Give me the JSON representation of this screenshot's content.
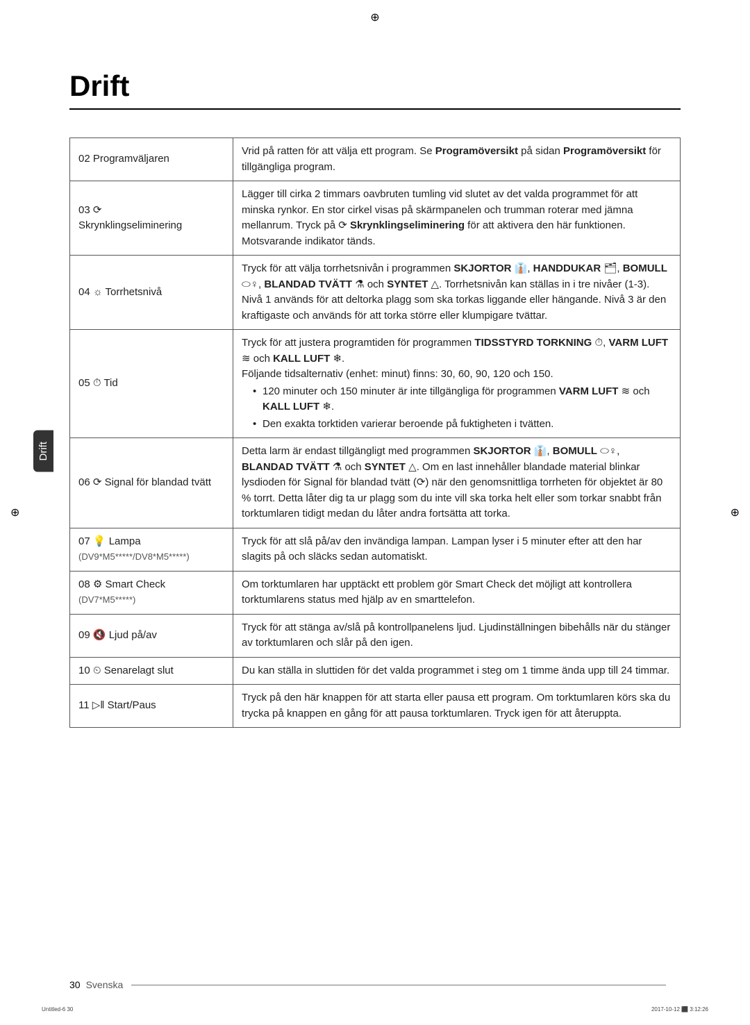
{
  "registration": "⊕",
  "title": "Drift",
  "sideTab": "Drift",
  "rows": [
    {
      "label": "02 Programväljaren",
      "content": "Vrid på ratten för att välja ett program. Se <b>Programöversikt</b> på sidan <b>Programöversikt</b> för tillgängliga program."
    },
    {
      "label": "03 ⟳<br>Skrynklingseliminering",
      "content": "Lägger till cirka 2 timmars oavbruten tumling vid slutet av det valda programmet för att minska rynkor. En stor cirkel visas på skärmpanelen och trumman roterar med jämna mellanrum. Tryck på ⟳ <b>Skrynklingseliminering</b> för att aktivera den här funktionen. Motsvarande indikator tänds."
    },
    {
      "label": "04 ☼ Torrhetsnivå",
      "content": "Tryck för att välja torrhetsnivån i programmen <b>SKJORTOR</b> 👔, <b>HANDDUKAR</b> 🗂, <b>BOMULL</b> ⬭♀, <b>BLANDAD TVÄTT</b> ⚗ och <b>SYNTET</b> △. Torrhetsnivån kan ställas in i tre nivåer (1-3). Nivå 1 används för att deltorka plagg som ska torkas liggande eller hängande. Nivå 3 är den kraftigaste och används för att torka större eller klumpigare tvättar."
    },
    {
      "label": "05 ⏱ Tid",
      "content": "Tryck för att justera programtiden för programmen <b>TIDSSTYRD TORKNING</b> ⏱, <b>VARM LUFT</b> ≋ och <b>KALL LUFT</b> ❄.<br>Följande tidsalternativ (enhet: minut) finns: 30, 60, 90, 120 och 150.<ul><li>120 minuter och 150 minuter är inte tillgängliga för programmen <b>VARM LUFT</b> ≋ och <b>KALL LUFT</b> ❄.</li><li>Den exakta torktiden varierar beroende på fuktigheten i tvätten.</li></ul>"
    },
    {
      "label": "06 ⟳ Signal för blandad tvätt",
      "content": "Detta larm är endast tillgängligt med programmen <b>SKJORTOR</b> 👔, <b>BOMULL</b> ⬭♀, <b>BLANDAD TVÄTT</b> ⚗ och <b>SYNTET</b> △. Om en last innehåller blandade material blinkar lysdioden för Signal för blandad tvätt (⟳) när den genomsnittliga torrheten för objektet är 80 % torrt. Detta låter dig ta ur plagg som du inte vill ska torka helt eller som torkar snabbt från torktumlaren tidigt medan du låter andra fortsätta att torka."
    },
    {
      "label": "07 💡 Lampa",
      "sublabel": "(DV9*M5*****/DV8*M5*****)",
      "content": "Tryck för att slå på/av den invändiga lampan. Lampan lyser i 5 minuter efter att den har slagits på och släcks sedan automatiskt."
    },
    {
      "label": "08 ⚙ Smart Check",
      "sublabel": "(DV7*M5*****)",
      "content": "Om torktumlaren har upptäckt ett problem gör Smart Check det möjligt att kontrollera torktumlarens status med hjälp av en smarttelefon."
    },
    {
      "label": "09 🔇 Ljud på/av",
      "content": "Tryck för att stänga av/slå på kontrollpanelens ljud. Ljudinställningen bibehålls när du stänger av torktumlaren och slår på den igen."
    },
    {
      "label": "10 ⏲ Senarelagt slut",
      "content": "Du kan ställa in sluttiden för det valda programmet i steg om 1 timme ända upp till 24 timmar."
    },
    {
      "label": "11 ▷‖ Start/Paus",
      "content": "Tryck på den här knappen för att starta eller pausa ett program. Om torktumlaren körs ska du trycka på knappen en gång för att pausa torktumlaren. Tryck igen för att återuppta."
    }
  ],
  "footer": {
    "pageNum": "30",
    "lang": "Svenska"
  },
  "tinyFooter": {
    "left": "Untitled-6   30",
    "right": "2017-10-12   ⬛ 3:12:26"
  }
}
